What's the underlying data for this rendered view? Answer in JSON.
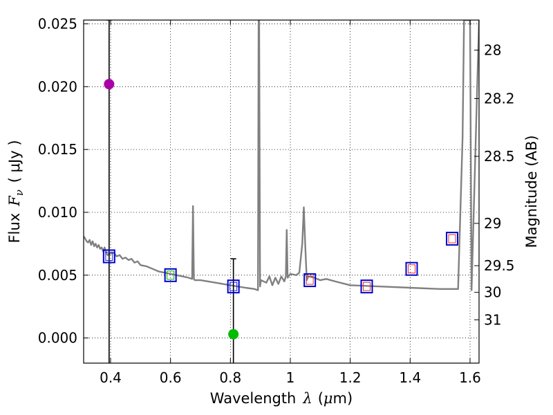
{
  "chart_data": {
    "type": "scatter",
    "xlabel": {
      "prefix": "Wavelength",
      "symbol": "λ",
      "unit_open": "(",
      "unit_mu": "μ",
      "unit_rest": "m)"
    },
    "ylabel": {
      "prefix": "Flux",
      "symbol": "F",
      "subscript": "ν",
      "unit": "( μJy )"
    },
    "y2label": "Magnitude (AB)",
    "xlim": [
      0.31,
      1.63
    ],
    "ylim": [
      -0.002,
      0.0253
    ],
    "grid": true,
    "x_ticks": [
      {
        "v": 0.4,
        "label": "0.4"
      },
      {
        "v": 0.6,
        "label": "0.6"
      },
      {
        "v": 0.8,
        "label": "0.8"
      },
      {
        "v": 1.0,
        "label": "1"
      },
      {
        "v": 1.2,
        "label": "1.2"
      },
      {
        "v": 1.4,
        "label": "1.4"
      },
      {
        "v": 1.6,
        "label": "1.6"
      }
    ],
    "y_ticks": [
      {
        "v": 0.0,
        "label": "0.000"
      },
      {
        "v": 0.005,
        "label": "0.005"
      },
      {
        "v": 0.01,
        "label": "0.010"
      },
      {
        "v": 0.015,
        "label": "0.015"
      },
      {
        "v": 0.02,
        "label": "0.020"
      },
      {
        "v": 0.025,
        "label": "0.025"
      }
    ],
    "mag_ticks": [
      {
        "v": 28,
        "label": "28"
      },
      {
        "v": 28.2,
        "label": "28.2"
      },
      {
        "v": 28.5,
        "label": "28.5"
      },
      {
        "v": 29,
        "label": "29"
      },
      {
        "v": 29.5,
        "label": "29.5"
      },
      {
        "v": 30,
        "label": "30"
      },
      {
        "v": 31,
        "label": "31"
      }
    ],
    "model_spectrum": {
      "color": "#808080",
      "x": [
        0.31,
        0.315,
        0.32,
        0.325,
        0.33,
        0.335,
        0.34,
        0.345,
        0.35,
        0.355,
        0.36,
        0.365,
        0.37,
        0.375,
        0.38,
        0.385,
        0.39,
        0.395,
        0.4,
        0.41,
        0.42,
        0.43,
        0.44,
        0.45,
        0.46,
        0.47,
        0.48,
        0.49,
        0.5,
        0.52,
        0.54,
        0.56,
        0.58,
        0.6,
        0.62,
        0.64,
        0.66,
        0.672,
        0.675,
        0.678,
        0.681,
        0.7,
        0.75,
        0.8,
        0.85,
        0.88,
        0.892,
        0.894,
        0.896,
        0.899,
        0.902,
        0.92,
        0.93,
        0.94,
        0.95,
        0.96,
        0.97,
        0.98,
        0.985,
        0.988,
        0.991,
        1.0,
        1.02,
        1.03,
        1.04,
        1.045,
        1.05,
        1.055,
        1.06,
        1.08,
        1.1,
        1.12,
        1.15,
        1.2,
        1.3,
        1.4,
        1.5,
        1.56,
        1.575,
        1.58,
        1.585,
        1.6,
        1.605,
        1.63
      ],
      "y": [
        0.0081,
        0.0079,
        0.0077,
        0.0076,
        0.0078,
        0.0074,
        0.0077,
        0.0073,
        0.0075,
        0.0072,
        0.0074,
        0.0071,
        0.0072,
        0.0069,
        0.0072,
        0.0068,
        0.0066,
        0.0067,
        0.0067,
        0.0068,
        0.0065,
        0.0066,
        0.0063,
        0.0064,
        0.0062,
        0.0063,
        0.006,
        0.0061,
        0.0058,
        0.0057,
        0.0055,
        0.0053,
        0.0052,
        0.0051,
        0.005,
        0.0049,
        0.0048,
        0.0047,
        0.0105,
        0.0047,
        0.0046,
        0.0046,
        0.0044,
        0.0042,
        0.004,
        0.0039,
        0.0038,
        0.0253,
        0.0253,
        0.0041,
        0.0046,
        0.0044,
        0.0049,
        0.0042,
        0.0048,
        0.0043,
        0.0049,
        0.0045,
        0.0049,
        0.0086,
        0.0048,
        0.0051,
        0.005,
        0.0052,
        0.0075,
        0.0104,
        0.0072,
        0.0046,
        0.0049,
        0.0048,
        0.0046,
        0.0047,
        0.0045,
        0.0042,
        0.0041,
        0.004,
        0.0039,
        0.0039,
        0.016,
        0.0253,
        0.0253,
        0.0253,
        0.0038,
        0.0253
      ]
    },
    "photometry_boxes": [
      {
        "x": 0.395,
        "y": 0.0065,
        "inner": "#1a1aff"
      },
      {
        "x": 0.6,
        "y": 0.005,
        "inner": "#00b000"
      },
      {
        "x": 0.81,
        "y": 0.0041,
        "inner": "#1a1aff"
      },
      {
        "x": 1.065,
        "y": 0.0046,
        "inner": "#e03030"
      },
      {
        "x": 1.255,
        "y": 0.0041,
        "inner": "#e03030"
      },
      {
        "x": 1.405,
        "y": 0.0055,
        "inner": "#e03030"
      },
      {
        "x": 1.54,
        "y": 0.0079,
        "inner": "#e03030"
      }
    ],
    "measured_points": [
      {
        "x": 0.395,
        "y": 0.0202,
        "color": "#aa00aa",
        "err_low": 0.0222,
        "err_high": 0.0051
      },
      {
        "x": 0.81,
        "y": 0.0003,
        "color": "#00bb00",
        "err_low": 0.0023,
        "err_high": 0.006
      }
    ],
    "colors": {
      "box_outer": "#0000cc",
      "axis": "#000000",
      "grid": "#000000"
    }
  }
}
